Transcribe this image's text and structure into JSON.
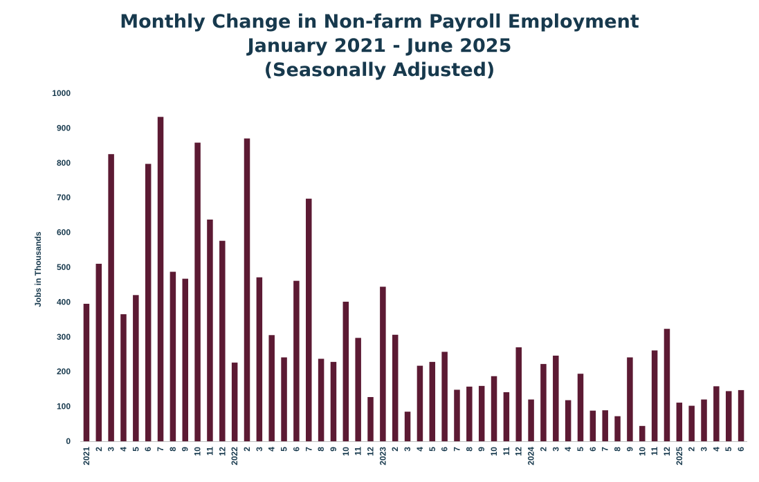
{
  "chart_data": {
    "type": "bar",
    "title": "Monthly Change in Non-farm Payroll Employment",
    "subtitle": "January 2021 - June 2025",
    "subtitle2": "(Seasonally Adjusted)",
    "xlabel": "",
    "ylabel": "Jobs in Thousands",
    "ylim": [
      0,
      1000
    ],
    "yticks": [
      0,
      100,
      200,
      300,
      400,
      500,
      600,
      700,
      800,
      900,
      1000
    ],
    "grid": false,
    "bar_color": "#5c1a33",
    "text_color": "#17394d",
    "categories": [
      "2021",
      "2",
      "3",
      "4",
      "5",
      "6",
      "7",
      "8",
      "9",
      "10",
      "11",
      "12",
      "2022",
      "2",
      "3",
      "4",
      "5",
      "6",
      "7",
      "8",
      "9",
      "10",
      "11",
      "12",
      "2023",
      "2",
      "3",
      "4",
      "5",
      "6",
      "7",
      "8",
      "9",
      "10",
      "11",
      "12",
      "2024",
      "2",
      "3",
      "4",
      "5",
      "6",
      "7",
      "8",
      "9",
      "10",
      "11",
      "12",
      "2025",
      "2",
      "3",
      "4",
      "5",
      "6"
    ],
    "values": [
      395,
      510,
      825,
      365,
      420,
      797,
      932,
      487,
      467,
      858,
      637,
      576,
      226,
      870,
      471,
      305,
      241,
      461,
      697,
      237,
      228,
      401,
      297,
      127,
      444,
      306,
      85,
      217,
      228,
      257,
      148,
      157,
      159,
      187,
      141,
      270,
      120,
      222,
      246,
      118,
      194,
      88,
      89,
      72,
      241,
      44,
      261,
      323,
      111,
      102,
      120,
      158,
      144,
      147
    ]
  }
}
